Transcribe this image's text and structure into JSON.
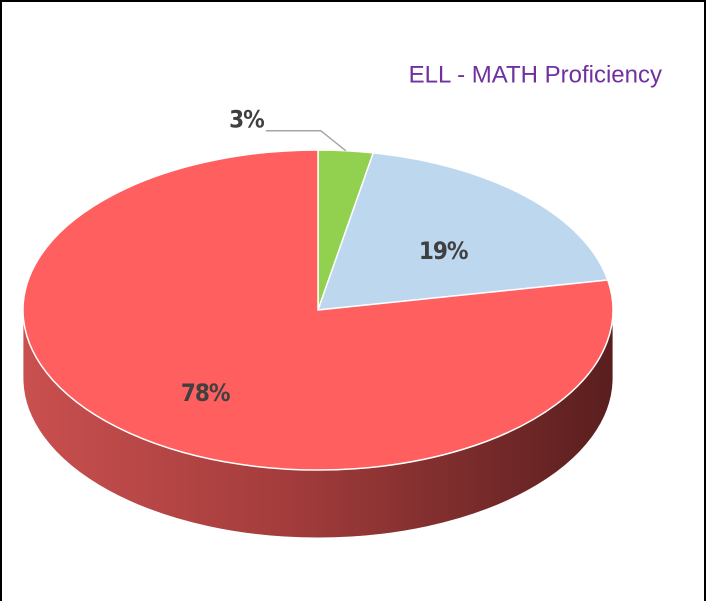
{
  "chart_data": {
    "type": "pie",
    "title": "ELL - MATH Proficiency",
    "values": [
      3,
      19,
      78
    ],
    "value_labels": [
      "3%",
      "19%",
      "78%"
    ],
    "colors": [
      "#92d050",
      "#bdd7ee",
      "#ff5f5f"
    ]
  }
}
